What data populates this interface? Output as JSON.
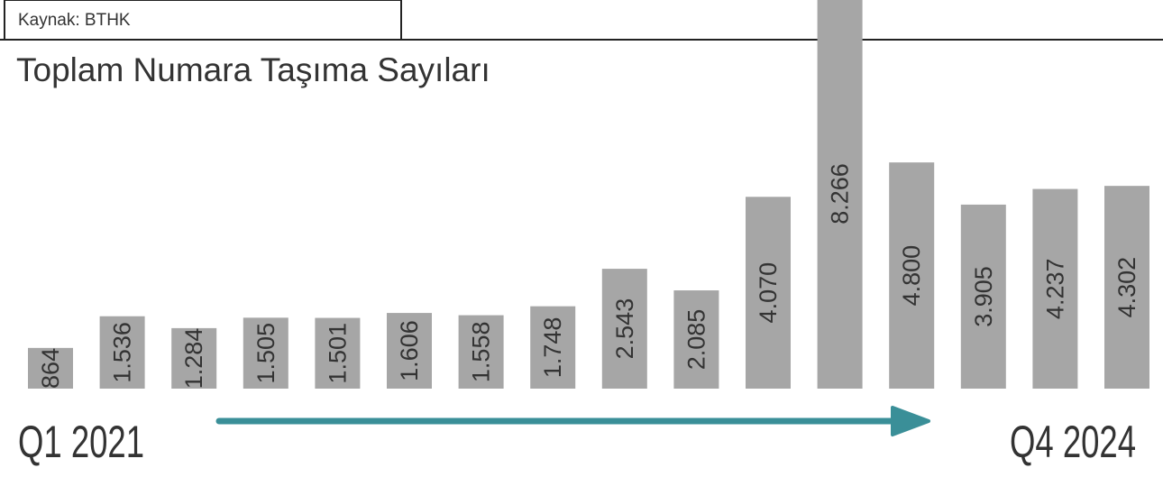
{
  "source": "Kaynak: BTHK",
  "chart_data": {
    "type": "bar",
    "title": "Toplam Numara Taşıma Sayıları",
    "categories": [
      "Q1 2021",
      null,
      null,
      null,
      null,
      null,
      null,
      null,
      null,
      null,
      null,
      null,
      null,
      null,
      null,
      "Q4 2024"
    ],
    "values": [
      864,
      1536,
      1284,
      1505,
      1501,
      1606,
      1558,
      1748,
      2543,
      2085,
      4070,
      8266,
      4800,
      3905,
      4237,
      4302
    ],
    "value_labels": [
      "864",
      "1.536",
      "1.284",
      "1.505",
      "1.501",
      "1.606",
      "1.558",
      "1.748",
      "2.543",
      "2.085",
      "4.070",
      "8.266",
      "4.800",
      "3.905",
      "4.237",
      "4.302"
    ],
    "color": "#a6a6a6"
  }
}
